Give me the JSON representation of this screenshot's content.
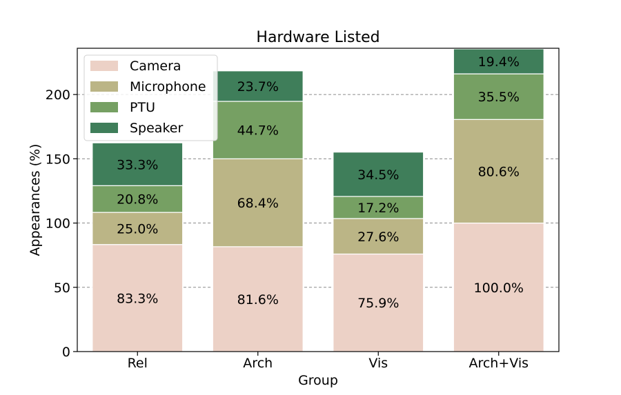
{
  "chart_data": {
    "type": "bar",
    "stacked": true,
    "title": "Hardware Listed",
    "xlabel": "Group",
    "ylabel": "Appearances (%)",
    "categories": [
      "Rel",
      "Arch",
      "Vis",
      "Arch+Vis"
    ],
    "ylim": [
      0,
      236
    ],
    "yticks": [
      0,
      50,
      100,
      150,
      200
    ],
    "grid": "y-dashed",
    "legend_position": "top-left",
    "series": [
      {
        "name": "Camera",
        "color": "#ecd1c6",
        "values": [
          83.3,
          81.6,
          75.9,
          100.0
        ],
        "labels": [
          "83.3%",
          "81.6%",
          "75.9%",
          "100.0%"
        ]
      },
      {
        "name": "Microphone",
        "color": "#bbb586",
        "values": [
          25.0,
          68.4,
          27.6,
          80.6
        ],
        "labels": [
          "25.0%",
          "68.4%",
          "27.6%",
          "80.6%"
        ]
      },
      {
        "name": "PTU",
        "color": "#76a063",
        "values": [
          20.8,
          44.7,
          17.2,
          35.5
        ],
        "labels": [
          "20.8%",
          "44.7%",
          "17.2%",
          "35.5%"
        ]
      },
      {
        "name": "Speaker",
        "color": "#3f7e5a",
        "values": [
          33.3,
          23.7,
          34.5,
          19.4
        ],
        "labels": [
          "33.3%",
          "23.7%",
          "34.5%",
          "19.4%"
        ]
      }
    ]
  }
}
